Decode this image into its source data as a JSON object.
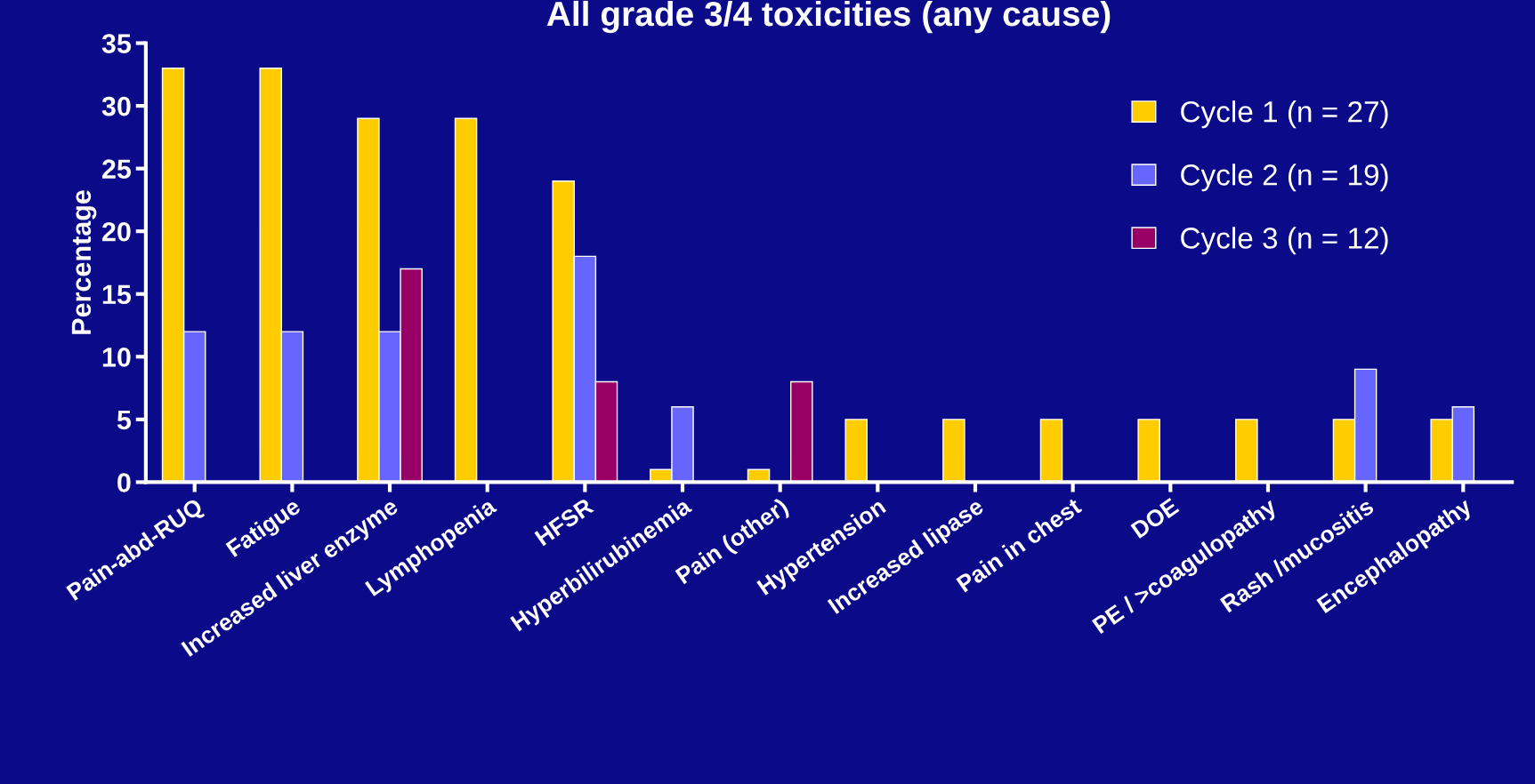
{
  "chart_data": {
    "type": "bar",
    "title": "All grade 3/4 toxicities (any cause)",
    "ylabel": "Percentage",
    "categories": [
      "Pain-abd-RUQ",
      "Fatigue",
      "Increased liver enzyme",
      "Lymphopenia",
      "HFSR",
      "Hyperbilirubinemia",
      "Pain (other)",
      "Hypertension",
      "Increased lipase",
      "Pain in chest",
      "DOE",
      "PE / >coagulopathy",
      "Rash /mucositis",
      "Encephalopathy"
    ],
    "series": [
      {
        "name": "Cycle 1 (n = 27)",
        "color": "#ffcc00",
        "values": [
          33,
          33,
          29,
          29,
          24,
          1,
          1,
          5,
          5,
          5,
          5,
          5,
          5,
          5
        ]
      },
      {
        "name": "Cycle 2 (n = 19)",
        "color": "#6666ff",
        "values": [
          12,
          12,
          12,
          null,
          18,
          6,
          null,
          null,
          null,
          null,
          null,
          null,
          9,
          6
        ]
      },
      {
        "name": "Cycle 3 (n = 12)",
        "color": "#990066",
        "values": [
          null,
          null,
          17,
          null,
          8,
          null,
          8,
          null,
          null,
          null,
          null,
          null,
          null,
          null
        ]
      }
    ],
    "ylim": [
      0,
      35
    ],
    "yticks": [
      0,
      5,
      10,
      15,
      20,
      25,
      30,
      35
    ],
    "grid": false,
    "legend": "top right"
  }
}
